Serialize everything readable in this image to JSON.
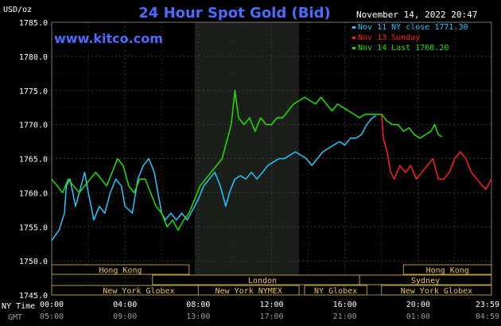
{
  "chart_data": {
    "type": "line",
    "title": "24 Hour Spot Gold (Bid)",
    "site": "www.kitco.com",
    "ylabel": "USD/oz",
    "date_label": "November 14, 2022 20:47",
    "ylim": [
      1745.0,
      1785.0
    ],
    "y_ticks": [
      "1785.0",
      "1780.0",
      "1775.0",
      "1770.0",
      "1765.0",
      "1760.0",
      "1755.0",
      "1750.0",
      "1745.0"
    ],
    "x_ticks_ny": [
      "00:00",
      "04:00",
      "08:00",
      "12:00",
      "16:00",
      "20:00",
      "23:59"
    ],
    "x_ticks_gmt": [
      "05:00",
      "09:00",
      "13:00",
      "17:00",
      "21:00",
      "01:00",
      "04:59"
    ],
    "x_row_labels": [
      "NY Time",
      "GMT"
    ],
    "grid": true,
    "legend_position": "top-right",
    "legend": [
      {
        "text": "Nov 11 NY close 1771.30",
        "color": "#22c8ff"
      },
      {
        "text": "Nov 13 Sunday",
        "color": "#ff2020"
      },
      {
        "text": "Nov 14 Last 1768.20",
        "color": "#22e000"
      }
    ],
    "highlight_band_hours": [
      7.8,
      13.5
    ],
    "sessions": [
      {
        "label": "Hong Kong",
        "start": 0,
        "end": 7.5,
        "row": 0
      },
      {
        "label": "London",
        "start": 5.5,
        "end": 17.5,
        "row": 1
      },
      {
        "label": "New York Globex",
        "start": 0,
        "end": 9.5,
        "row": 2
      },
      {
        "label": "New York NYMEX",
        "start": 8.0,
        "end": 13.5,
        "row": 2
      },
      {
        "label": "NY Globex",
        "start": 13.8,
        "end": 17.2,
        "row": 2
      },
      {
        "label": "Hong Kong",
        "start": 19.2,
        "end": 24,
        "row": 0
      },
      {
        "label": "Sydney",
        "start": 16.8,
        "end": 24,
        "row": 1
      },
      {
        "label": "New York Globex",
        "start": 18.0,
        "end": 24,
        "row": 2
      }
    ],
    "series": [
      {
        "name": "Nov 11 NY close 1771.30",
        "color": "#22c8ff",
        "points": [
          [
            0,
            1753.0
          ],
          [
            0.4,
            1754.5
          ],
          [
            0.7,
            1757
          ],
          [
            0.8,
            1761
          ],
          [
            1.0,
            1762
          ],
          [
            1.3,
            1758
          ],
          [
            1.6,
            1761
          ],
          [
            1.8,
            1763
          ],
          [
            2.0,
            1760
          ],
          [
            2.3,
            1756
          ],
          [
            2.6,
            1758
          ],
          [
            2.9,
            1757
          ],
          [
            3.2,
            1760
          ],
          [
            3.5,
            1762
          ],
          [
            3.8,
            1761
          ],
          [
            4.0,
            1758
          ],
          [
            4.4,
            1757
          ],
          [
            4.7,
            1762
          ],
          [
            5.0,
            1764
          ],
          [
            5.3,
            1765
          ],
          [
            5.6,
            1763
          ],
          [
            5.8,
            1760
          ],
          [
            6.0,
            1757
          ],
          [
            6.2,
            1756
          ],
          [
            6.5,
            1757
          ],
          [
            6.8,
            1756
          ],
          [
            7.1,
            1757
          ],
          [
            7.4,
            1756
          ],
          [
            7.7,
            1757.5
          ],
          [
            8.0,
            1759
          ],
          [
            8.3,
            1761
          ],
          [
            8.6,
            1762
          ],
          [
            8.9,
            1763
          ],
          [
            9.2,
            1761
          ],
          [
            9.5,
            1758
          ],
          [
            9.7,
            1760
          ],
          [
            10.0,
            1762
          ],
          [
            10.3,
            1762.5
          ],
          [
            10.6,
            1762
          ],
          [
            10.9,
            1763
          ],
          [
            11.2,
            1762
          ],
          [
            11.5,
            1763
          ],
          [
            11.8,
            1764
          ],
          [
            12.1,
            1764.5
          ],
          [
            12.4,
            1765
          ],
          [
            12.7,
            1765
          ],
          [
            13.0,
            1765.5
          ],
          [
            13.3,
            1766
          ],
          [
            13.6,
            1765.5
          ],
          [
            13.9,
            1765
          ],
          [
            14.2,
            1764
          ],
          [
            14.5,
            1765
          ],
          [
            14.8,
            1766
          ],
          [
            15.1,
            1766.5
          ],
          [
            15.4,
            1767
          ],
          [
            15.7,
            1767.5
          ],
          [
            16.0,
            1767
          ],
          [
            16.3,
            1768
          ],
          [
            16.6,
            1768
          ],
          [
            16.9,
            1768.5
          ],
          [
            17.2,
            1770
          ],
          [
            17.5,
            1771
          ],
          [
            17.7,
            1771.3
          ]
        ]
      },
      {
        "name": "Nov 13 Sunday",
        "color": "#ff2020",
        "points": [
          [
            17.3,
            1771.5
          ],
          [
            18.0,
            1771.5
          ],
          [
            18.1,
            1768
          ],
          [
            18.3,
            1766
          ],
          [
            18.5,
            1763
          ],
          [
            18.7,
            1762
          ],
          [
            19.0,
            1764
          ],
          [
            19.3,
            1763
          ],
          [
            19.6,
            1764
          ],
          [
            19.9,
            1762
          ],
          [
            20.2,
            1763
          ],
          [
            20.5,
            1764
          ],
          [
            20.8,
            1765
          ],
          [
            21.1,
            1762
          ],
          [
            21.4,
            1762
          ],
          [
            21.7,
            1763
          ],
          [
            22.0,
            1765
          ],
          [
            22.3,
            1766
          ],
          [
            22.6,
            1765
          ],
          [
            22.9,
            1763
          ],
          [
            23.2,
            1762
          ],
          [
            23.5,
            1761
          ],
          [
            23.7,
            1760.5
          ],
          [
            23.9,
            1761.5
          ],
          [
            24.0,
            1762
          ]
        ]
      },
      {
        "name": "Nov 14 Last 1768.20",
        "color": "#22e000",
        "points": [
          [
            0,
            1762
          ],
          [
            0.3,
            1761
          ],
          [
            0.6,
            1760
          ],
          [
            0.9,
            1762
          ],
          [
            1.2,
            1761
          ],
          [
            1.5,
            1760
          ],
          [
            1.8,
            1761
          ],
          [
            2.1,
            1762
          ],
          [
            2.4,
            1763
          ],
          [
            2.7,
            1762
          ],
          [
            3.0,
            1761
          ],
          [
            3.3,
            1763
          ],
          [
            3.6,
            1765
          ],
          [
            3.9,
            1764
          ],
          [
            4.2,
            1761
          ],
          [
            4.5,
            1760
          ],
          [
            4.8,
            1762
          ],
          [
            5.1,
            1762
          ],
          [
            5.4,
            1760
          ],
          [
            5.7,
            1758
          ],
          [
            6.0,
            1757
          ],
          [
            6.3,
            1755
          ],
          [
            6.6,
            1756
          ],
          [
            6.9,
            1754.5
          ],
          [
            7.2,
            1756
          ],
          [
            7.5,
            1757
          ],
          [
            7.8,
            1759
          ],
          [
            8.1,
            1761
          ],
          [
            8.4,
            1762
          ],
          [
            8.7,
            1763
          ],
          [
            9.0,
            1764
          ],
          [
            9.3,
            1765
          ],
          [
            9.6,
            1768
          ],
          [
            9.8,
            1770
          ],
          [
            10.0,
            1775
          ],
          [
            10.2,
            1771
          ],
          [
            10.5,
            1770
          ],
          [
            10.8,
            1771
          ],
          [
            11.1,
            1769
          ],
          [
            11.4,
            1771
          ],
          [
            11.7,
            1770
          ],
          [
            12.0,
            1770
          ],
          [
            12.3,
            1771
          ],
          [
            12.6,
            1771
          ],
          [
            12.9,
            1772
          ],
          [
            13.2,
            1773
          ],
          [
            13.5,
            1773.5
          ],
          [
            13.8,
            1774
          ],
          [
            14.1,
            1773.5
          ],
          [
            14.4,
            1773
          ],
          [
            14.7,
            1774
          ],
          [
            15.0,
            1773
          ],
          [
            15.3,
            1772
          ],
          [
            15.6,
            1773
          ],
          [
            15.9,
            1772.5
          ],
          [
            16.2,
            1772
          ],
          [
            16.5,
            1771.5
          ],
          [
            16.8,
            1771
          ],
          [
            17.1,
            1771.5
          ],
          [
            17.4,
            1771.5
          ],
          [
            17.7,
            1771.5
          ],
          [
            18.0,
            1771.5
          ],
          [
            18.3,
            1770.5
          ],
          [
            18.6,
            1770
          ],
          [
            18.9,
            1770
          ],
          [
            19.2,
            1769
          ],
          [
            19.5,
            1769.5
          ],
          [
            19.8,
            1768.5
          ],
          [
            20.1,
            1768
          ],
          [
            20.4,
            1768.5
          ],
          [
            20.7,
            1769
          ],
          [
            20.9,
            1770
          ],
          [
            21.1,
            1768.5
          ],
          [
            21.3,
            1768.2
          ]
        ]
      }
    ]
  }
}
